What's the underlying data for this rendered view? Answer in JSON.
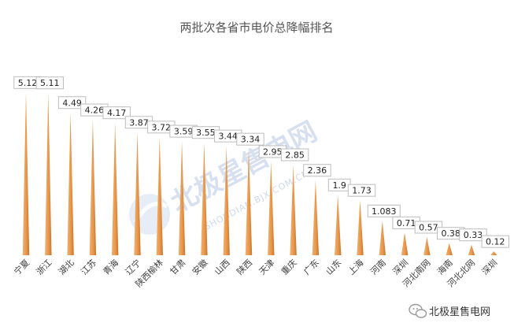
{
  "chart_data": {
    "type": "bar",
    "title": "两批次各省市电价总降幅排名",
    "xlabel": "",
    "ylabel": "",
    "ylim": [
      0,
      5.5
    ],
    "grid": false,
    "legend": "none",
    "bar_color": "#e8974a",
    "categories": [
      "宁夏",
      "浙江",
      "湖北",
      "江苏",
      "青海",
      "辽宁",
      "陕西榆林",
      "甘肃",
      "安徽",
      "山西",
      "陕西",
      "天津",
      "重庆",
      "广东",
      "山东",
      "上海",
      "河南",
      "深圳",
      "河北南网",
      "海南",
      "河北北网",
      "深圳"
    ],
    "values": [
      5.12,
      5.11,
      4.49,
      4.26,
      4.17,
      3.87,
      3.72,
      3.59,
      3.55,
      3.44,
      3.34,
      2.95,
      2.85,
      2.36,
      1.9,
      1.73,
      1.083,
      0.71,
      0.57,
      0.38,
      0.33,
      0.12
    ],
    "value_labels": [
      "5.12",
      "5.11",
      "4.49",
      "4.26",
      "4.17",
      "3.87",
      "3.72",
      "3.59",
      "3.55",
      "3.44",
      "3.34",
      "2.95",
      "2.85",
      "2.36",
      "1.9",
      "1.73",
      "1.083",
      "0.71",
      "0.57",
      "0.38",
      "0.33",
      "0.12"
    ]
  },
  "watermark": {
    "text": "北极星售电网",
    "sub": "SHOUDIAN.BJX.COM.CN",
    "color": "#b8c8e4"
  },
  "footer": {
    "brand": "北极星售电网",
    "icon": "wechat-icon"
  }
}
